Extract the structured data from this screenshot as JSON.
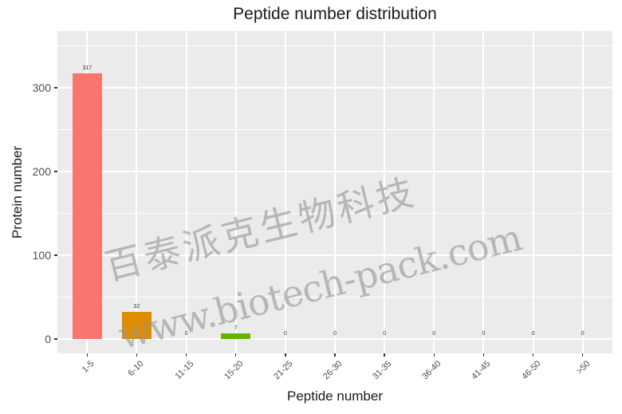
{
  "chart_data": {
    "type": "bar",
    "title": "Peptide number distribution",
    "xlabel": "Peptide number",
    "ylabel": "Protein number",
    "categories": [
      "1-5",
      "6-10",
      "11-15",
      "15-20",
      "21-25",
      "26-30",
      "31-35",
      "36-40",
      "41-45",
      "46-50",
      ">50"
    ],
    "values": [
      317,
      32,
      0,
      7,
      0,
      0,
      0,
      0,
      0,
      0,
      0
    ],
    "colors": [
      "#F8766D",
      "#DE8C00",
      "#B79F00",
      "#64B200",
      "#00BA38",
      "#00C08B",
      "#00BFC4",
      "#00B4F0",
      "#619CFF",
      "#C77CFF",
      "#F564E3"
    ],
    "yticks": [
      0,
      100,
      200,
      300
    ],
    "ylim": [
      -17,
      367
    ],
    "grid": true,
    "legend": "none",
    "bar_labels": [
      "317",
      "32",
      "0",
      "7",
      "0",
      "0",
      "0",
      "0",
      "0",
      "0",
      "0"
    ]
  },
  "watermark": {
    "line1": "百泰派克生物科技",
    "line2": "www.biotech-pack.com"
  }
}
